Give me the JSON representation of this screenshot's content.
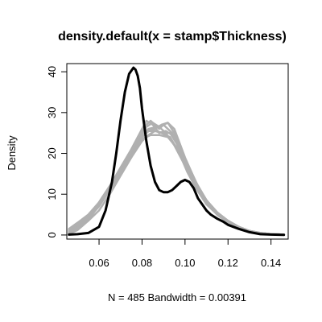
{
  "chart_data": {
    "type": "line",
    "title": "density.default(x = stamp$Thickness)",
    "xlabel": "N = 485   Bandwidth = 0.00391",
    "ylabel": "Density",
    "xlim": [
      0.045,
      0.148
    ],
    "ylim": [
      -1,
      42
    ],
    "xticks": [
      0.06,
      0.08,
      0.1,
      0.12,
      0.14
    ],
    "xtick_labels": [
      "0.06",
      "0.08",
      "0.10",
      "0.12",
      "0.14"
    ],
    "yticks": [
      0,
      10,
      20,
      30,
      40
    ],
    "ytick_labels": [
      "0",
      "10",
      "20",
      "30",
      "40"
    ],
    "grid": false,
    "legend": "none",
    "series": [
      {
        "color": "#000000",
        "x": [
          0.046,
          0.05,
          0.055,
          0.06,
          0.063,
          0.066,
          0.068,
          0.07,
          0.072,
          0.074,
          0.076,
          0.077,
          0.078,
          0.079,
          0.08,
          0.082,
          0.084,
          0.086,
          0.088,
          0.09,
          0.092,
          0.094,
          0.096,
          0.098,
          0.1,
          0.102,
          0.104,
          0.106,
          0.108,
          0.11,
          0.112,
          0.115,
          0.118,
          0.12,
          0.125,
          0.13,
          0.135,
          0.14,
          0.146
        ],
        "y": [
          0.1,
          0.2,
          0.5,
          2,
          6,
          13,
          20,
          28,
          35,
          39.5,
          41,
          40.5,
          39,
          36,
          31,
          23,
          17,
          13,
          11,
          10.5,
          10.5,
          11,
          12,
          13,
          13.5,
          13,
          11.5,
          9,
          7.5,
          6,
          5,
          4,
          3.2,
          2.5,
          1.5,
          0.7,
          0.2,
          0.1,
          0.05
        ]
      },
      {
        "color": "#b0b0b0",
        "x": [
          0.046,
          0.05,
          0.055,
          0.06,
          0.065,
          0.07,
          0.075,
          0.08,
          0.082,
          0.084,
          0.086,
          0.088,
          0.09,
          0.092,
          0.095,
          0.1,
          0.105,
          0.11,
          0.115,
          0.12,
          0.125,
          0.13,
          0.135,
          0.14,
          0.146
        ],
        "y": [
          1.5,
          3,
          5,
          8,
          12,
          16,
          20,
          25,
          27,
          28,
          27,
          26,
          27,
          27.5,
          25,
          18,
          12,
          8,
          5,
          3.5,
          2,
          1,
          0.5,
          0.2,
          0.1
        ]
      },
      {
        "color": "#b0b0b0",
        "x": [
          0.046,
          0.05,
          0.055,
          0.06,
          0.065,
          0.07,
          0.075,
          0.08,
          0.083,
          0.086,
          0.089,
          0.092,
          0.095,
          0.1,
          0.105,
          0.11,
          0.115,
          0.12,
          0.125,
          0.13,
          0.135,
          0.14,
          0.146
        ],
        "y": [
          0.5,
          1.5,
          4,
          8,
          12,
          16,
          20,
          24,
          25.5,
          26,
          27,
          27.5,
          26,
          19,
          13,
          8.5,
          5.5,
          3.5,
          2,
          1,
          0.5,
          0.2,
          0.1
        ]
      },
      {
        "color": "#b0b0b0",
        "x": [
          0.046,
          0.05,
          0.055,
          0.06,
          0.065,
          0.07,
          0.075,
          0.08,
          0.082,
          0.085,
          0.088,
          0.091,
          0.095,
          0.1,
          0.105,
          0.11,
          0.115,
          0.12,
          0.125,
          0.13,
          0.135,
          0.14,
          0.146
        ],
        "y": [
          0.8,
          2,
          3.5,
          6,
          10,
          14.5,
          19,
          24,
          26.5,
          27.5,
          26.5,
          25,
          22,
          17,
          12,
          8,
          5,
          3,
          1.8,
          0.9,
          0.4,
          0.2,
          0.1
        ]
      },
      {
        "color": "#b0b0b0",
        "x": [
          0.046,
          0.05,
          0.055,
          0.06,
          0.065,
          0.07,
          0.075,
          0.08,
          0.083,
          0.086,
          0.09,
          0.093,
          0.096,
          0.1,
          0.105,
          0.11,
          0.115,
          0.12,
          0.125,
          0.13,
          0.135,
          0.14,
          0.146
        ],
        "y": [
          0.3,
          1.2,
          3.5,
          7.5,
          11.5,
          15,
          19,
          23,
          24.5,
          25.5,
          25,
          25,
          22.5,
          17.5,
          12.5,
          8.5,
          5.5,
          3.5,
          2,
          1,
          0.5,
          0.2,
          0.1
        ]
      },
      {
        "color": "#b0b0b0",
        "x": [
          0.046,
          0.05,
          0.055,
          0.06,
          0.065,
          0.07,
          0.075,
          0.079,
          0.082,
          0.085,
          0.088,
          0.091,
          0.094,
          0.098,
          0.102,
          0.106,
          0.11,
          0.115,
          0.12,
          0.125,
          0.13,
          0.135,
          0.14,
          0.146
        ],
        "y": [
          1,
          2.5,
          4.5,
          8,
          12,
          16.5,
          21,
          25,
          28,
          27,
          25,
          25.5,
          24.5,
          21,
          16.5,
          12,
          8.5,
          5.5,
          3.5,
          2,
          1,
          0.5,
          0.2,
          0.1
        ]
      },
      {
        "color": "#b0b0b0",
        "x": [
          0.046,
          0.05,
          0.055,
          0.06,
          0.065,
          0.07,
          0.075,
          0.08,
          0.084,
          0.088,
          0.092,
          0.096,
          0.1,
          0.104,
          0.108,
          0.112,
          0.116,
          0.12,
          0.125,
          0.13,
          0.135,
          0.14,
          0.146
        ],
        "y": [
          0.6,
          1.8,
          4,
          7.5,
          11,
          15,
          19.5,
          23.5,
          24.5,
          24.5,
          24,
          21.5,
          17.5,
          13.5,
          10,
          7,
          5,
          3.2,
          2,
          1,
          0.5,
          0.2,
          0.1
        ]
      },
      {
        "color": "#b0b0b0",
        "x": [
          0.046,
          0.05,
          0.055,
          0.06,
          0.065,
          0.07,
          0.075,
          0.08,
          0.083,
          0.087,
          0.09,
          0.094,
          0.098,
          0.102,
          0.106,
          0.11,
          0.115,
          0.12,
          0.125,
          0.13,
          0.135,
          0.14,
          0.146
        ],
        "y": [
          1.2,
          2.5,
          4,
          7,
          11,
          15.5,
          20,
          24.5,
          26,
          26.5,
          27,
          25,
          21,
          16,
          11.5,
          8,
          5,
          3,
          1.8,
          0.9,
          0.4,
          0.2,
          0.1
        ]
      },
      {
        "color": "#b0b0b0",
        "x": [
          0.046,
          0.05,
          0.055,
          0.06,
          0.065,
          0.07,
          0.075,
          0.08,
          0.083,
          0.086,
          0.089,
          0.093,
          0.097,
          0.101,
          0.105,
          0.11,
          0.115,
          0.12,
          0.125,
          0.13,
          0.135,
          0.14,
          0.146
        ],
        "y": [
          0.4,
          1.5,
          3.8,
          7.5,
          11.5,
          15.5,
          19.5,
          24,
          25.5,
          25.5,
          25,
          24,
          20.5,
          15.5,
          11.5,
          7.5,
          5,
          3,
          1.8,
          0.9,
          0.4,
          0.2,
          0.1
        ]
      }
    ]
  }
}
